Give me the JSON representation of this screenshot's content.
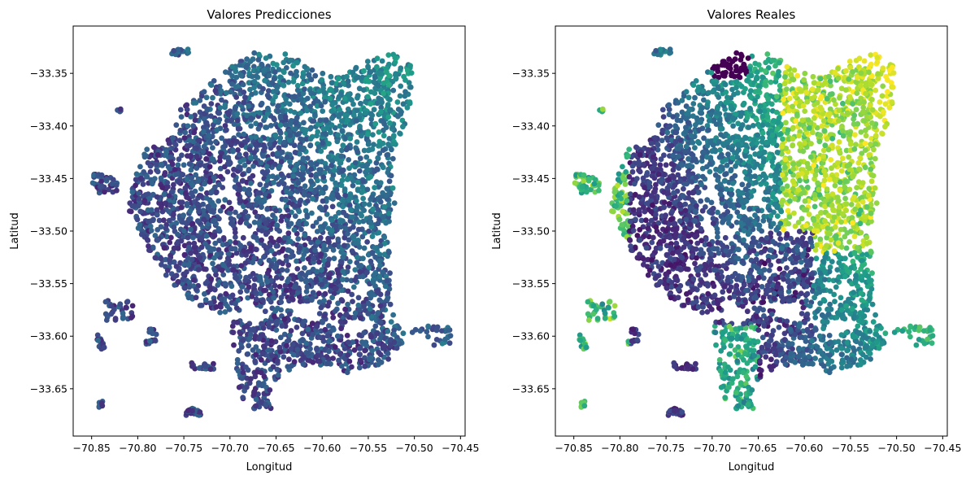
{
  "chart_data": [
    {
      "type": "scatter",
      "title": "Valores Predicciones",
      "xlabel": "Longitud",
      "ylabel": "Latitud",
      "xlim": [
        -70.87,
        -70.445
      ],
      "ylim": [
        -33.695,
        -33.305
      ],
      "xticks": [
        -70.85,
        -70.8,
        -70.75,
        -70.7,
        -70.65,
        -70.6,
        -70.55,
        -70.5,
        -70.45
      ],
      "xtick_labels": [
        "−70.85",
        "−70.80",
        "−70.75",
        "−70.70",
        "−70.65",
        "−70.60",
        "−70.55",
        "−70.50",
        "−70.45"
      ],
      "yticks": [
        -33.35,
        -33.4,
        -33.45,
        -33.5,
        -33.55,
        -33.6,
        -33.65
      ],
      "ytick_labels": [
        "−33.35",
        "−33.40",
        "−33.45",
        "−33.50",
        "−33.55",
        "−33.60",
        "−33.65"
      ],
      "colormap": "viridis",
      "grid": false,
      "legend": "none"
    },
    {
      "type": "scatter",
      "title": "Valores Reales",
      "xlabel": "Longitud",
      "ylabel": "Latitud",
      "xlim": [
        -70.87,
        -70.445
      ],
      "ylim": [
        -33.695,
        -33.305
      ],
      "xticks": [
        -70.85,
        -70.8,
        -70.75,
        -70.7,
        -70.65,
        -70.6,
        -70.55,
        -70.5,
        -70.45
      ],
      "xtick_labels": [
        "−70.85",
        "−70.80",
        "−70.75",
        "−70.70",
        "−70.65",
        "−70.60",
        "−70.55",
        "−70.50",
        "−70.45"
      ],
      "yticks": [
        -33.35,
        -33.4,
        -33.45,
        -33.5,
        -33.55,
        -33.6,
        -33.65
      ],
      "ytick_labels": [
        "−33.35",
        "−33.40",
        "−33.45",
        "−33.50",
        "−33.55",
        "−33.60",
        "−33.65"
      ],
      "colormap": "viridis",
      "grid": false,
      "legend": "none"
    }
  ],
  "colors": {
    "viridis_dark": "#440154",
    "viridis_blue": "#3b528b",
    "viridis_teal": "#21918c",
    "viridis_green": "#5ec962",
    "viridis_yellow": "#fde725"
  }
}
